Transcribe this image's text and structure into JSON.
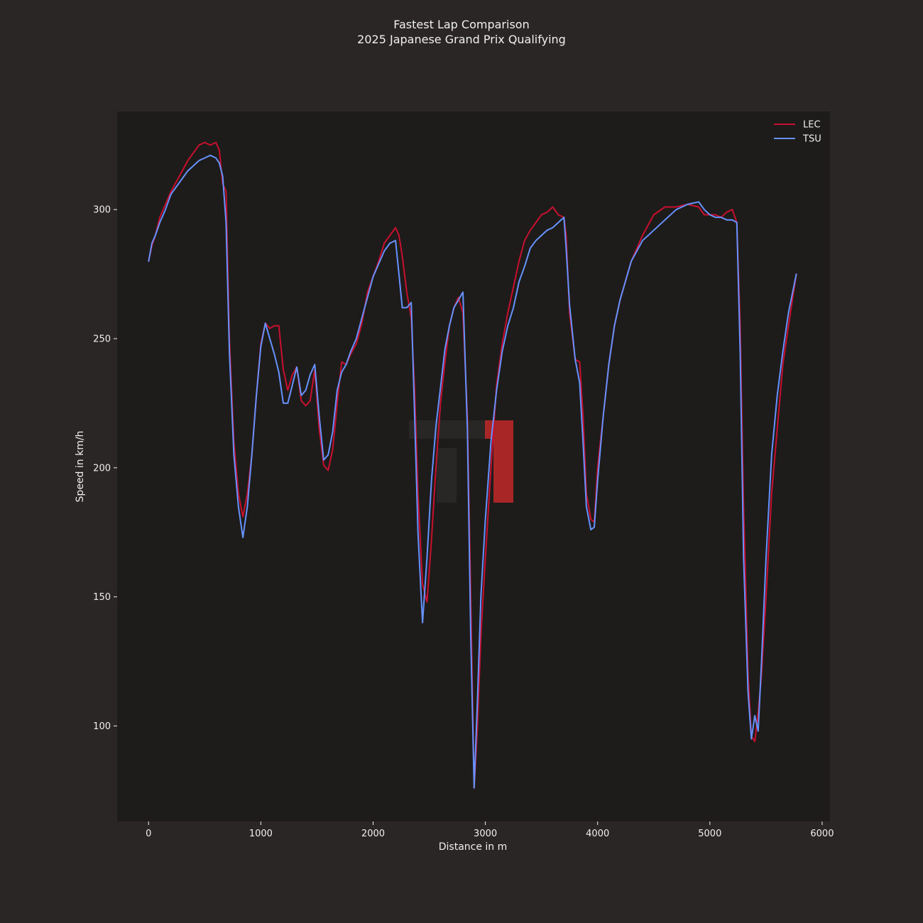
{
  "chart_data": {
    "type": "line",
    "title": "Fastest Lap Comparison",
    "subtitle": "2025 Japanese Grand Prix Qualifying",
    "xlabel": "Distance in m",
    "ylabel": "Speed in km/h",
    "xlim": [
      -280,
      6070
    ],
    "ylim": [
      63,
      338
    ],
    "xticks": [
      0,
      1000,
      2000,
      3000,
      4000,
      5000,
      6000
    ],
    "yticks": [
      100,
      150,
      200,
      250,
      300
    ],
    "grid": false,
    "legend": "top-right",
    "colors": {
      "figure_bg": "#292625",
      "plot_bg": "#1e1c1b",
      "axis": "#f0f0f0",
      "watermark_dark": "#2b2928",
      "watermark_red": "#a82626"
    },
    "series": [
      {
        "name": "LEC",
        "color": "#c8102e",
        "x": [
          0,
          30,
          60,
          100,
          150,
          200,
          250,
          300,
          350,
          400,
          450,
          500,
          550,
          600,
          630,
          660,
          690,
          720,
          760,
          800,
          840,
          880,
          920,
          960,
          1000,
          1040,
          1080,
          1120,
          1160,
          1200,
          1240,
          1280,
          1320,
          1360,
          1400,
          1440,
          1480,
          1520,
          1560,
          1600,
          1640,
          1680,
          1720,
          1760,
          1800,
          1850,
          1900,
          1950,
          2000,
          2050,
          2100,
          2150,
          2200,
          2230,
          2260,
          2300,
          2340,
          2370,
          2400,
          2440,
          2480,
          2520,
          2560,
          2600,
          2640,
          2680,
          2720,
          2760,
          2800,
          2840,
          2870,
          2900,
          2930,
          2960,
          3000,
          3050,
          3100,
          3150,
          3200,
          3250,
          3300,
          3350,
          3400,
          3450,
          3500,
          3550,
          3600,
          3650,
          3700,
          3720,
          3750,
          3800,
          3840,
          3870,
          3900,
          3940,
          3970,
          4000,
          4050,
          4100,
          4150,
          4200,
          4300,
          4400,
          4500,
          4600,
          4700,
          4800,
          4900,
          4950,
          5000,
          5050,
          5100,
          5150,
          5200,
          5240,
          5270,
          5300,
          5340,
          5370,
          5400,
          5430,
          5460,
          5500,
          5550,
          5600,
          5650,
          5700,
          5770
        ],
        "y": [
          280,
          286,
          290,
          297,
          302,
          307,
          311,
          315,
          319,
          322,
          325,
          326,
          325,
          326,
          323,
          310,
          307,
          250,
          210,
          190,
          181,
          190,
          205,
          228,
          248,
          256,
          254,
          255,
          255,
          238,
          230,
          236,
          239,
          226,
          224,
          226,
          238,
          215,
          201,
          199,
          207,
          225,
          241,
          240,
          244,
          248,
          256,
          268,
          274,
          280,
          287,
          290,
          293,
          290,
          282,
          268,
          258,
          230,
          190,
          155,
          148,
          172,
          200,
          225,
          241,
          255,
          262,
          266,
          260,
          220,
          150,
          76,
          100,
          135,
          165,
          200,
          232,
          248,
          260,
          270,
          280,
          288,
          292,
          295,
          298,
          299,
          301,
          298,
          297,
          290,
          260,
          242,
          241,
          220,
          190,
          180,
          179,
          200,
          220,
          240,
          255,
          265,
          280,
          290,
          298,
          301,
          301,
          302,
          301,
          298,
          298,
          298,
          297,
          299,
          300,
          295,
          255,
          185,
          120,
          96,
          94,
          105,
          120,
          150,
          190,
          215,
          240,
          255,
          275
        ]
      },
      {
        "name": "TSU",
        "color": "#6692ff",
        "x": [
          0,
          30,
          60,
          100,
          150,
          200,
          250,
          300,
          350,
          400,
          450,
          500,
          550,
          600,
          630,
          660,
          690,
          720,
          760,
          800,
          840,
          880,
          920,
          960,
          1000,
          1040,
          1080,
          1120,
          1160,
          1200,
          1240,
          1280,
          1320,
          1360,
          1400,
          1440,
          1480,
          1520,
          1560,
          1600,
          1640,
          1680,
          1720,
          1760,
          1800,
          1850,
          1900,
          1950,
          2000,
          2050,
          2100,
          2150,
          2200,
          2230,
          2260,
          2300,
          2340,
          2370,
          2400,
          2440,
          2480,
          2520,
          2560,
          2600,
          2640,
          2680,
          2720,
          2760,
          2800,
          2840,
          2870,
          2900,
          2930,
          2960,
          3000,
          3050,
          3100,
          3150,
          3200,
          3250,
          3300,
          3350,
          3400,
          3450,
          3500,
          3550,
          3600,
          3650,
          3700,
          3720,
          3750,
          3800,
          3840,
          3870,
          3900,
          3940,
          3970,
          4000,
          4050,
          4100,
          4150,
          4200,
          4300,
          4400,
          4500,
          4600,
          4700,
          4800,
          4900,
          4950,
          5000,
          5050,
          5100,
          5150,
          5200,
          5240,
          5270,
          5300,
          5340,
          5370,
          5400,
          5430,
          5460,
          5500,
          5550,
          5600,
          5650,
          5700,
          5770
        ],
        "y": [
          280,
          287,
          290,
          295,
          300,
          306,
          309,
          312,
          315,
          317,
          319,
          320,
          321,
          320,
          318,
          313,
          295,
          245,
          205,
          185,
          173,
          185,
          205,
          228,
          247,
          256,
          250,
          244,
          237,
          225,
          225,
          232,
          239,
          228,
          230,
          236,
          240,
          220,
          203,
          205,
          214,
          230,
          237,
          240,
          245,
          250,
          258,
          266,
          274,
          279,
          284,
          287,
          288,
          275,
          262,
          262,
          264,
          220,
          175,
          140,
          165,
          195,
          216,
          231,
          246,
          255,
          262,
          265,
          268,
          215,
          135,
          76,
          110,
          150,
          180,
          210,
          230,
          245,
          255,
          262,
          272,
          278,
          285,
          288,
          290,
          292,
          293,
          295,
          297,
          285,
          263,
          242,
          233,
          210,
          185,
          176,
          177,
          195,
          220,
          240,
          255,
          265,
          280,
          288,
          292,
          296,
          300,
          302,
          303,
          300,
          298,
          297,
          297,
          296,
          296,
          295,
          245,
          165,
          113,
          95,
          104,
          98,
          125,
          165,
          205,
          228,
          245,
          260,
          275
        ]
      }
    ]
  }
}
